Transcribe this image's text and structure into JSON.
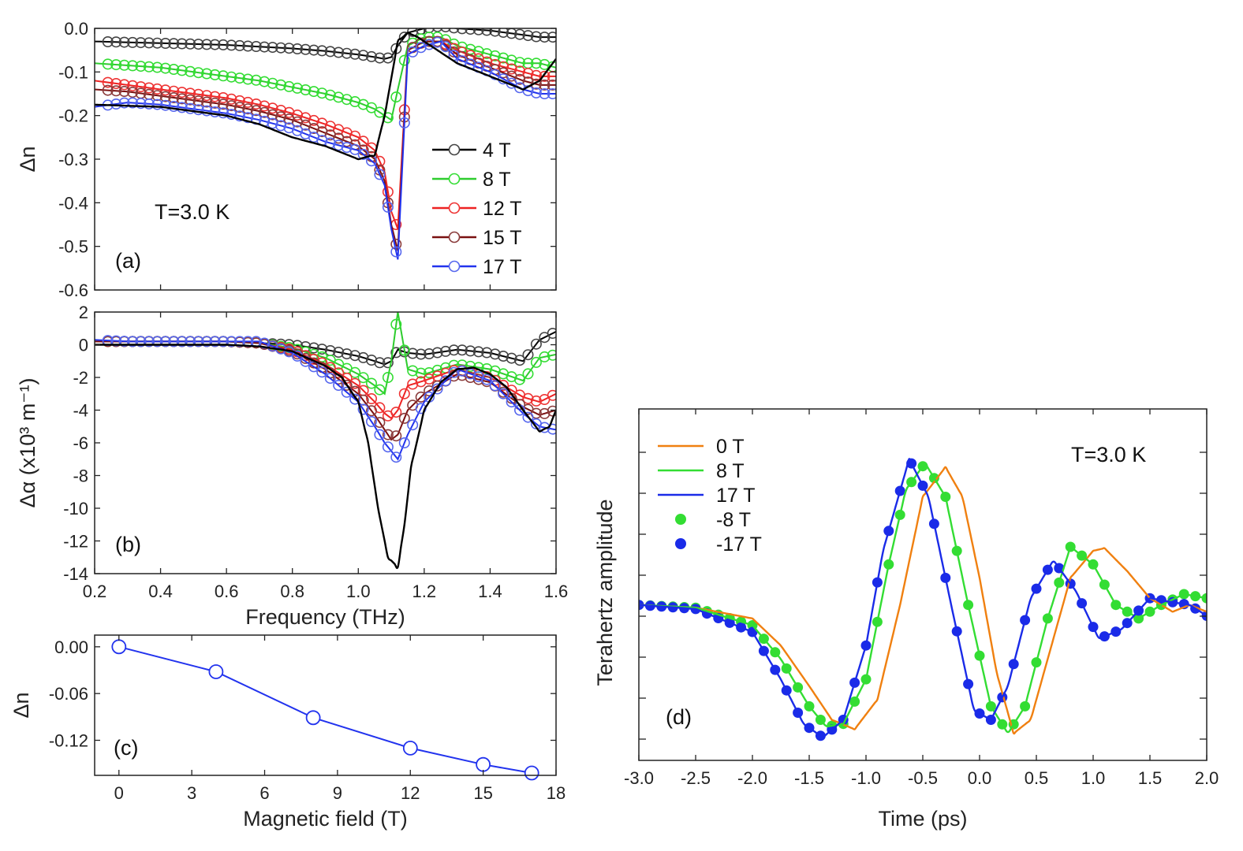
{
  "chart_data": [
    {
      "panel": "a",
      "type": "line",
      "panel_label": "(a)",
      "annotation": "T=3.0 K",
      "xlabel": "",
      "ylabel": "Δn",
      "xlim": [
        0.2,
        1.6
      ],
      "ylim": [
        -0.6,
        0.0
      ],
      "xticks": [
        "0.2",
        "0.4",
        "0.6",
        "0.8",
        "1.0",
        "1.2",
        "1.4",
        "1.6"
      ],
      "yticks": [
        "0.0",
        "-0.1",
        "-0.2",
        "-0.3",
        "-0.4",
        "-0.5",
        "-0.6"
      ],
      "legend": "right",
      "series": [
        {
          "name": "4 T",
          "color": "#000000",
          "marker_color": "#444444",
          "x": [
            0.2,
            0.3,
            0.4,
            0.5,
            0.6,
            0.7,
            0.8,
            0.9,
            1.0,
            1.05,
            1.08,
            1.1,
            1.12,
            1.15,
            1.2,
            1.25,
            1.3,
            1.4,
            1.5,
            1.55,
            1.6
          ],
          "y": [
            -0.03,
            -0.032,
            -0.034,
            -0.036,
            -0.038,
            -0.042,
            -0.046,
            -0.052,
            -0.06,
            -0.066,
            -0.07,
            -0.066,
            -0.04,
            -0.01,
            0.0,
            0.005,
            0.0,
            -0.005,
            -0.015,
            -0.02,
            -0.02
          ]
        },
        {
          "name": "8 T",
          "color": "#2ecc2e",
          "marker_color": "#33dd33",
          "x": [
            0.2,
            0.3,
            0.4,
            0.5,
            0.6,
            0.7,
            0.8,
            0.9,
            1.0,
            1.05,
            1.08,
            1.1,
            1.12,
            1.15,
            1.2,
            1.25,
            1.3,
            1.4,
            1.5,
            1.55,
            1.6
          ],
          "y": [
            -0.08,
            -0.085,
            -0.09,
            -0.1,
            -0.11,
            -0.12,
            -0.135,
            -0.15,
            -0.17,
            -0.185,
            -0.2,
            -0.21,
            -0.14,
            -0.04,
            -0.02,
            -0.02,
            -0.04,
            -0.06,
            -0.08,
            -0.08,
            -0.09
          ]
        },
        {
          "name": "12 T",
          "color": "#ee2222",
          "marker_color": "#ee3333",
          "x": [
            0.2,
            0.3,
            0.4,
            0.5,
            0.6,
            0.7,
            0.8,
            0.9,
            1.0,
            1.05,
            1.08,
            1.1,
            1.12,
            1.15,
            1.2,
            1.25,
            1.3,
            1.4,
            1.5,
            1.55,
            1.6
          ],
          "y": [
            -0.12,
            -0.13,
            -0.14,
            -0.15,
            -0.16,
            -0.175,
            -0.195,
            -0.22,
            -0.25,
            -0.28,
            -0.33,
            -0.42,
            -0.46,
            -0.05,
            -0.03,
            -0.03,
            -0.05,
            -0.08,
            -0.1,
            -0.11,
            -0.11
          ]
        },
        {
          "name": "15 T",
          "color": "#7a1010",
          "marker_color": "#8a3a3a",
          "x": [
            0.2,
            0.3,
            0.4,
            0.5,
            0.6,
            0.7,
            0.8,
            0.9,
            1.0,
            1.05,
            1.08,
            1.1,
            1.12,
            1.15,
            1.2,
            1.25,
            1.3,
            1.4,
            1.5,
            1.55,
            1.6
          ],
          "y": [
            -0.14,
            -0.145,
            -0.155,
            -0.165,
            -0.175,
            -0.19,
            -0.21,
            -0.24,
            -0.27,
            -0.3,
            -0.35,
            -0.45,
            -0.51,
            -0.05,
            -0.03,
            -0.03,
            -0.06,
            -0.09,
            -0.12,
            -0.13,
            -0.13
          ]
        },
        {
          "name": "17 T",
          "color": "#2233ee",
          "marker_color": "#5566ee",
          "x": [
            0.2,
            0.3,
            0.4,
            0.5,
            0.6,
            0.7,
            0.8,
            0.9,
            1.0,
            1.05,
            1.08,
            1.1,
            1.12,
            1.15,
            1.2,
            1.25,
            1.3,
            1.4,
            1.5,
            1.55,
            1.6
          ],
          "y": [
            -0.18,
            -0.17,
            -0.175,
            -0.185,
            -0.195,
            -0.21,
            -0.23,
            -0.26,
            -0.28,
            -0.31,
            -0.36,
            -0.46,
            -0.53,
            -0.06,
            -0.04,
            -0.03,
            -0.07,
            -0.1,
            -0.14,
            -0.15,
            -0.15
          ]
        },
        {
          "name": "",
          "color": "#000000",
          "line_only": true,
          "x": [
            0.2,
            0.4,
            0.6,
            0.7,
            0.8,
            0.9,
            1.0,
            1.05,
            1.08,
            1.12,
            1.15,
            1.18,
            1.3,
            1.4,
            1.5,
            1.55,
            1.6
          ],
          "y": [
            -0.175,
            -0.18,
            -0.2,
            -0.22,
            -0.25,
            -0.27,
            -0.3,
            -0.29,
            -0.2,
            -0.03,
            -0.01,
            -0.02,
            -0.08,
            -0.11,
            -0.14,
            -0.12,
            -0.07
          ]
        }
      ]
    },
    {
      "panel": "b",
      "type": "line",
      "panel_label": "(b)",
      "xlabel": "Frequency (THz)",
      "ylabel": "Δα (x10³ m⁻¹)",
      "xlim": [
        0.2,
        1.6
      ],
      "ylim": [
        -14,
        2
      ],
      "xticks": [
        "0.2",
        "0.4",
        "0.6",
        "0.8",
        "1.0",
        "1.2",
        "1.4",
        "1.6"
      ],
      "yticks": [
        "2",
        "0",
        "-2",
        "-4",
        "-6",
        "-8",
        "-10",
        "-12",
        "-14"
      ],
      "series": [
        {
          "name": "4 T",
          "color": "#000000",
          "marker_color": "#444444",
          "x": [
            0.2,
            0.3,
            0.4,
            0.5,
            0.6,
            0.7,
            0.8,
            0.9,
            1.0,
            1.05,
            1.08,
            1.1,
            1.12,
            1.15,
            1.2,
            1.3,
            1.4,
            1.5,
            1.55,
            1.6
          ],
          "y": [
            0.2,
            0.2,
            0.2,
            0.2,
            0.2,
            0.1,
            0,
            -0.3,
            -0.7,
            -1.0,
            -1.2,
            -1.0,
            -0.3,
            -0.5,
            -0.6,
            -0.3,
            -0.5,
            -1.0,
            0.3,
            0.8
          ]
        },
        {
          "name": "8 T",
          "color": "#2ecc2e",
          "marker_color": "#33dd33",
          "x": [
            0.2,
            0.3,
            0.4,
            0.5,
            0.6,
            0.7,
            0.8,
            0.9,
            1.0,
            1.05,
            1.08,
            1.1,
            1.12,
            1.15,
            1.2,
            1.3,
            1.4,
            1.5,
            1.55,
            1.6
          ],
          "y": [
            0.2,
            0.2,
            0.2,
            0.2,
            0.2,
            0.1,
            -0.2,
            -0.8,
            -1.8,
            -2.5,
            -3.0,
            -1.0,
            2.0,
            -1.5,
            -1.8,
            -1.2,
            -1.5,
            -2.2,
            -0.8,
            -0.6
          ]
        },
        {
          "name": "12 T",
          "color": "#ee2222",
          "marker_color": "#ee3333",
          "x": [
            0.2,
            0.3,
            0.4,
            0.5,
            0.6,
            0.7,
            0.8,
            0.9,
            1.0,
            1.05,
            1.08,
            1.1,
            1.12,
            1.15,
            1.2,
            1.3,
            1.4,
            1.5,
            1.55,
            1.6
          ],
          "y": [
            0.2,
            0.2,
            0.2,
            0.2,
            0.2,
            0.1,
            -0.3,
            -1.2,
            -2.5,
            -3.5,
            -4.2,
            -4.5,
            -4.0,
            -2.5,
            -2.2,
            -1.5,
            -2.0,
            -3.2,
            -3.5,
            -3.0
          ]
        },
        {
          "name": "15 T",
          "color": "#7a1010",
          "marker_color": "#8a3a3a",
          "x": [
            0.2,
            0.3,
            0.4,
            0.5,
            0.6,
            0.7,
            0.8,
            0.9,
            1.0,
            1.05,
            1.08,
            1.1,
            1.12,
            1.15,
            1.2,
            1.3,
            1.4,
            1.5,
            1.55,
            1.6
          ],
          "y": [
            0.2,
            0.2,
            0.2,
            0.2,
            0.2,
            0.1,
            -0.4,
            -1.5,
            -3.0,
            -4.3,
            -5.2,
            -5.8,
            -5.5,
            -4.0,
            -3.0,
            -1.8,
            -2.3,
            -3.8,
            -4.3,
            -4.0
          ]
        },
        {
          "name": "17 T",
          "color": "#2233ee",
          "marker_color": "#5566ee",
          "x": [
            0.2,
            0.3,
            0.4,
            0.5,
            0.6,
            0.7,
            0.8,
            0.9,
            1.0,
            1.05,
            1.08,
            1.1,
            1.12,
            1.15,
            1.2,
            1.3,
            1.4,
            1.5,
            1.55,
            1.6
          ],
          "y": [
            0.3,
            0.2,
            0.2,
            0.2,
            0.2,
            0.2,
            -0.5,
            -1.8,
            -3.5,
            -5.0,
            -6.0,
            -6.5,
            -7.0,
            -5.5,
            -3.5,
            -1.5,
            -2.2,
            -4.2,
            -5.0,
            -5.2
          ]
        },
        {
          "name": "",
          "color": "#000000",
          "line_only": true,
          "x": [
            0.2,
            0.4,
            0.6,
            0.7,
            0.8,
            0.9,
            0.95,
            1.0,
            1.03,
            1.06,
            1.09,
            1.12,
            1.14,
            1.16,
            1.2,
            1.25,
            1.3,
            1.35,
            1.4,
            1.45,
            1.5,
            1.55,
            1.58,
            1.6
          ],
          "y": [
            0,
            0,
            0,
            -0.1,
            -0.4,
            -1.3,
            -2.0,
            -3.5,
            -6.0,
            -10.0,
            -13.0,
            -13.6,
            -11.0,
            -7.5,
            -4.0,
            -2.3,
            -1.5,
            -1.4,
            -1.8,
            -2.6,
            -4.0,
            -5.3,
            -5.0,
            -4.0
          ]
        }
      ]
    },
    {
      "panel": "c",
      "type": "line",
      "panel_label": "(c)",
      "xlabel": "Magnetic field (T)",
      "ylabel": "Δn",
      "xlim": [
        -1,
        18
      ],
      "ylim": [
        -0.165,
        0.015
      ],
      "xticks": [
        "0",
        "3",
        "6",
        "9",
        "12",
        "15",
        "18"
      ],
      "yticks": [
        "0.00",
        "-0.06",
        "-0.12"
      ],
      "series": [
        {
          "name": "",
          "color": "#2233ee",
          "x": [
            0,
            4,
            8,
            12,
            15,
            17
          ],
          "y": [
            0.0,
            -0.032,
            -0.091,
            -0.13,
            -0.151,
            -0.162
          ]
        }
      ]
    },
    {
      "panel": "d",
      "type": "line",
      "panel_label": "(d)",
      "annotation": "T=3.0 K",
      "xlabel": "Time (ps)",
      "ylabel": "Terahertz amplitude",
      "xlim": [
        -3.0,
        2.0
      ],
      "ylim": [
        -1.15,
        1.45
      ],
      "xticks": [
        "-3.0",
        "-2.5",
        "-2.0",
        "-1.5",
        "-1.0",
        "-0.5",
        "0.0",
        "0.5",
        "1.0",
        "1.5",
        "2.0"
      ],
      "legend": "top-left",
      "series": [
        {
          "name": "0 T",
          "color": "#f08010",
          "style": "line",
          "x": [
            -3.0,
            -2.5,
            -2.0,
            -1.75,
            -1.5,
            -1.3,
            -1.1,
            -0.9,
            -0.7,
            -0.5,
            -0.3,
            -0.15,
            0.0,
            0.15,
            0.3,
            0.45,
            0.6,
            0.8,
            1.0,
            1.1,
            1.3,
            1.5,
            1.7,
            1.85,
            2.0
          ],
          "y": [
            0.0,
            -0.02,
            -0.1,
            -0.3,
            -0.6,
            -0.85,
            -0.92,
            -0.7,
            0.0,
            0.8,
            1.02,
            0.8,
            0.2,
            -0.5,
            -0.95,
            -0.85,
            -0.4,
            0.2,
            0.4,
            0.42,
            0.25,
            0.05,
            -0.05,
            0.0,
            -0.05
          ]
        },
        {
          "name": "8 T",
          "color": "#33dd33",
          "style": "line",
          "x": [
            -3.0,
            -2.5,
            -2.0,
            -1.75,
            -1.5,
            -1.35,
            -1.2,
            -1.0,
            -0.8,
            -0.65,
            -0.48,
            -0.3,
            -0.1,
            0.1,
            0.25,
            0.4,
            0.6,
            0.8,
            1.0,
            1.2,
            1.4,
            1.6,
            1.8,
            2.0
          ],
          "y": [
            0.0,
            -0.02,
            -0.15,
            -0.4,
            -0.75,
            -0.9,
            -0.88,
            -0.55,
            0.3,
            0.85,
            1.05,
            0.8,
            0.0,
            -0.75,
            -0.95,
            -0.75,
            -0.1,
            0.43,
            0.3,
            0.0,
            -0.1,
            0.0,
            0.08,
            0.05
          ]
        },
        {
          "name": "17 T",
          "color": "#1a2be8",
          "style": "line",
          "x": [
            -3.0,
            -2.5,
            -2.0,
            -1.75,
            -1.55,
            -1.38,
            -1.2,
            -1.0,
            -0.85,
            -0.62,
            -0.45,
            -0.25,
            -0.05,
            0.1,
            0.25,
            0.45,
            0.65,
            0.85,
            1.05,
            1.25,
            1.5,
            1.7,
            1.85,
            2.0
          ],
          "y": [
            0.0,
            -0.03,
            -0.2,
            -0.55,
            -0.88,
            -0.98,
            -0.85,
            -0.3,
            0.4,
            1.08,
            0.8,
            0.0,
            -0.78,
            -0.85,
            -0.6,
            0.05,
            0.33,
            0.1,
            -0.25,
            -0.18,
            0.05,
            0.02,
            0.0,
            -0.08
          ]
        },
        {
          "name": "-8 T",
          "color": "#33dd33",
          "style": "dots",
          "ref": "8 T"
        },
        {
          "name": "-17 T",
          "color": "#1a2be8",
          "style": "dots",
          "ref": "17 T"
        }
      ]
    }
  ]
}
